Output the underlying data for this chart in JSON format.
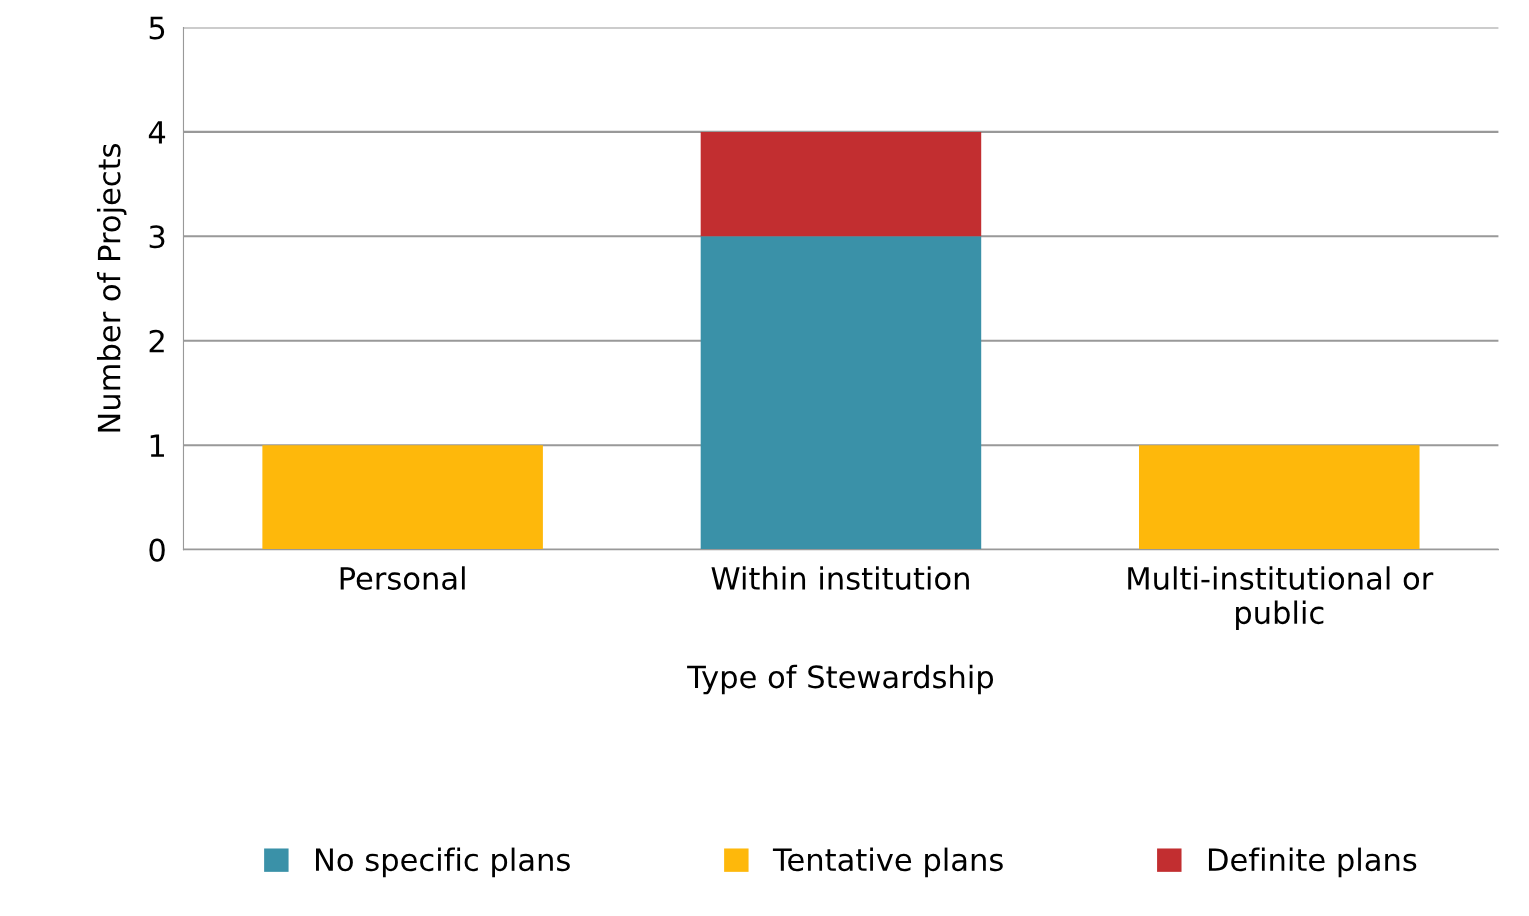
{
  "chart_data": {
    "type": "bar",
    "stacked": true,
    "xlabel": "Type of Stewardship",
    "ylabel": "Number of Projects",
    "categories": [
      "Personal",
      "Within institution",
      "Multi-institutional or public"
    ],
    "series": [
      {
        "name": "No specific plans",
        "color": "#3a91a8",
        "values": [
          0,
          3,
          0
        ]
      },
      {
        "name": "Tentative plans",
        "color": "#feb80b",
        "values": [
          1,
          0,
          1
        ]
      },
      {
        "name": "Definite plans",
        "color": "#c22e30",
        "values": [
          0,
          1,
          0
        ]
      }
    ],
    "ylim": [
      0,
      5
    ],
    "yticks": [
      0,
      1,
      2,
      3,
      4,
      5
    ],
    "grid": "y",
    "legend": "bottom"
  }
}
